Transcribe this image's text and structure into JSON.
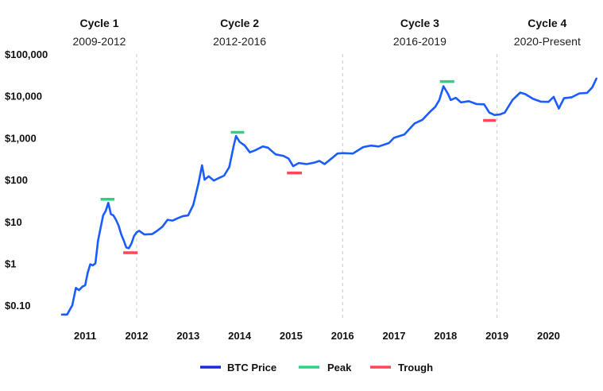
{
  "chart_data": {
    "type": "line",
    "title": "",
    "xlabel": "",
    "ylabel": "",
    "y_scale": "log",
    "ylim": [
      0.05,
      100000
    ],
    "xlim": [
      2010.55,
      2020.95
    ],
    "grid": false,
    "legend_position": "bottom-center",
    "cycles": [
      {
        "title": "Cycle 1",
        "range": "2009-2012",
        "boundary_end": 2012.0
      },
      {
        "title": "Cycle 2",
        "range": "2012-2016",
        "boundary_end": 2016.0
      },
      {
        "title": "Cycle 3",
        "range": "2016-2019",
        "boundary_end": 2019.0
      },
      {
        "title": "Cycle 4",
        "range": "2020-Present"
      }
    ],
    "y_ticks": [
      {
        "value": 100000,
        "label": "$100,000"
      },
      {
        "value": 10000,
        "label": "$10,000"
      },
      {
        "value": 1000,
        "label": "$1,000"
      },
      {
        "value": 100,
        "label": "$100"
      },
      {
        "value": 10,
        "label": "$10"
      },
      {
        "value": 1,
        "label": "$1"
      },
      {
        "value": 0.1,
        "label": "$0.10"
      }
    ],
    "x_ticks": [
      {
        "value": 2011,
        "label": "2011"
      },
      {
        "value": 2012,
        "label": "2012"
      },
      {
        "value": 2013,
        "label": "2013"
      },
      {
        "value": 2014,
        "label": "2014"
      },
      {
        "value": 2015,
        "label": "2015"
      },
      {
        "value": 2016,
        "label": "2016"
      },
      {
        "value": 2017,
        "label": "2017"
      },
      {
        "value": 2018,
        "label": "2018"
      },
      {
        "value": 2019,
        "label": "2019"
      },
      {
        "value": 2020,
        "label": "2020"
      }
    ],
    "series": [
      {
        "name": "BTC Price",
        "color": "#1a5cff",
        "points": [
          [
            2010.55,
            0.06
          ],
          [
            2010.65,
            0.06
          ],
          [
            2010.75,
            0.1
          ],
          [
            2010.82,
            0.26
          ],
          [
            2010.88,
            0.23
          ],
          [
            2010.95,
            0.28
          ],
          [
            2011.0,
            0.3
          ],
          [
            2011.05,
            0.6
          ],
          [
            2011.1,
            0.95
          ],
          [
            2011.15,
            0.9
          ],
          [
            2011.2,
            1.0
          ],
          [
            2011.25,
            3.5
          ],
          [
            2011.3,
            7.0
          ],
          [
            2011.35,
            14.0
          ],
          [
            2011.4,
            18.0
          ],
          [
            2011.45,
            28.0
          ],
          [
            2011.5,
            15.0
          ],
          [
            2011.55,
            14.0
          ],
          [
            2011.6,
            11.0
          ],
          [
            2011.65,
            8.0
          ],
          [
            2011.7,
            5.0
          ],
          [
            2011.75,
            3.5
          ],
          [
            2011.8,
            2.4
          ],
          [
            2011.85,
            2.3
          ],
          [
            2011.9,
            3.0
          ],
          [
            2011.95,
            4.5
          ],
          [
            2012.0,
            5.5
          ],
          [
            2012.05,
            6.0
          ],
          [
            2012.15,
            4.9
          ],
          [
            2012.3,
            5.0
          ],
          [
            2012.4,
            6.0
          ],
          [
            2012.5,
            7.5
          ],
          [
            2012.6,
            11.0
          ],
          [
            2012.7,
            10.5
          ],
          [
            2012.8,
            12.0
          ],
          [
            2012.9,
            13.5
          ],
          [
            2013.0,
            14.0
          ],
          [
            2013.1,
            25.0
          ],
          [
            2013.2,
            80.0
          ],
          [
            2013.27,
            220.0
          ],
          [
            2013.32,
            100.0
          ],
          [
            2013.4,
            120.0
          ],
          [
            2013.5,
            95.0
          ],
          [
            2013.6,
            110.0
          ],
          [
            2013.7,
            125.0
          ],
          [
            2013.8,
            200.0
          ],
          [
            2013.88,
            600.0
          ],
          [
            2013.93,
            1100.0
          ],
          [
            2014.0,
            800.0
          ],
          [
            2014.1,
            650.0
          ],
          [
            2014.2,
            450.0
          ],
          [
            2014.3,
            500.0
          ],
          [
            2014.45,
            620.0
          ],
          [
            2014.55,
            580.0
          ],
          [
            2014.7,
            400.0
          ],
          [
            2014.85,
            370.0
          ],
          [
            2014.95,
            320.0
          ],
          [
            2015.04,
            210.0
          ],
          [
            2015.15,
            250.0
          ],
          [
            2015.3,
            235.0
          ],
          [
            2015.45,
            255.0
          ],
          [
            2015.55,
            280.0
          ],
          [
            2015.65,
            235.0
          ],
          [
            2015.8,
            330.0
          ],
          [
            2015.9,
            420.0
          ],
          [
            2016.0,
            430.0
          ],
          [
            2016.2,
            420.0
          ],
          [
            2016.4,
            600.0
          ],
          [
            2016.55,
            650.0
          ],
          [
            2016.7,
            620.0
          ],
          [
            2016.9,
            750.0
          ],
          [
            2017.0,
            1000.0
          ],
          [
            2017.2,
            1200.0
          ],
          [
            2017.4,
            2200.0
          ],
          [
            2017.55,
            2700.0
          ],
          [
            2017.7,
            4200.0
          ],
          [
            2017.8,
            5500.0
          ],
          [
            2017.88,
            8000.0
          ],
          [
            2017.96,
            17000.0
          ],
          [
            2018.05,
            11000.0
          ],
          [
            2018.1,
            8000.0
          ],
          [
            2018.2,
            9000.0
          ],
          [
            2018.3,
            7000.0
          ],
          [
            2018.45,
            7500.0
          ],
          [
            2018.6,
            6400.0
          ],
          [
            2018.75,
            6300.0
          ],
          [
            2018.85,
            4000.0
          ],
          [
            2018.95,
            3500.0
          ],
          [
            2019.05,
            3600.0
          ],
          [
            2019.15,
            4000.0
          ],
          [
            2019.3,
            8000.0
          ],
          [
            2019.45,
            12000.0
          ],
          [
            2019.55,
            11000.0
          ],
          [
            2019.7,
            8500.0
          ],
          [
            2019.85,
            7300.0
          ],
          [
            2020.0,
            7200.0
          ],
          [
            2020.1,
            9500.0
          ],
          [
            2020.2,
            5000.0
          ],
          [
            2020.3,
            8800.0
          ],
          [
            2020.45,
            9300.0
          ],
          [
            2020.6,
            11500.0
          ],
          [
            2020.75,
            11800.0
          ],
          [
            2020.85,
            16000.0
          ],
          [
            2020.93,
            26000.0
          ]
        ]
      },
      {
        "name": "Peak",
        "color": "#2ed184",
        "markers": [
          {
            "x_start": 2011.3,
            "x_end": 2011.57,
            "value": 34
          },
          {
            "x_start": 2013.83,
            "x_end": 2014.09,
            "value": 1350
          },
          {
            "x_start": 2017.89,
            "x_end": 2018.17,
            "value": 22000
          }
        ]
      },
      {
        "name": "Trough",
        "color": "#ff4757",
        "markers": [
          {
            "x_start": 2011.74,
            "x_end": 2012.02,
            "value": 1.8
          },
          {
            "x_start": 2014.92,
            "x_end": 2015.21,
            "value": 145
          },
          {
            "x_start": 2018.73,
            "x_end": 2018.98,
            "value": 2600
          }
        ]
      }
    ]
  }
}
